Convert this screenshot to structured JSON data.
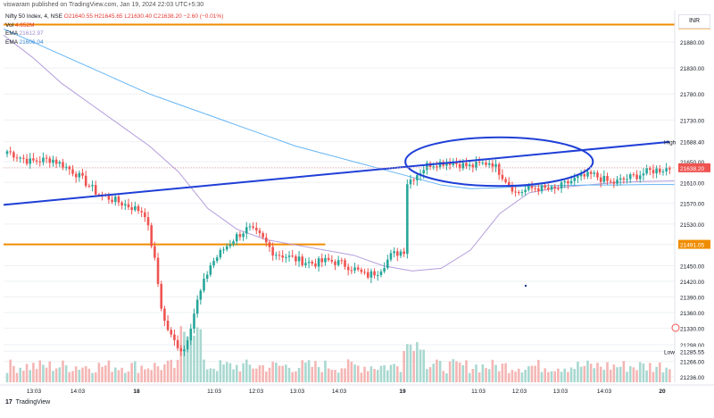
{
  "header": {
    "published": "viswaram published on TradingView.com, Jan 19, 2024 22:03 UTC+5:30"
  },
  "legend": {
    "symbol": "Nifty 50 Index, 4, NSE",
    "ohlc": "O21640.55 H21645.65 L21630.40 C21638.20 −2.60 (−0.01%)",
    "vol_label": "Vol",
    "vol_value": "4.652M",
    "ema1_label": "EMA",
    "ema1_value": "21612.97",
    "ema2_label": "EMA",
    "ema2_value": "21606.04"
  },
  "currency": "INR",
  "logo": {
    "mark": "17",
    "text": "TradingView"
  },
  "colors": {
    "up": "#26a69a",
    "down": "#ef5350",
    "vol_up": "#a8d8d0",
    "vol_down": "#f4b6b4",
    "trend": "#1f3fd6",
    "hline": "#f08c00",
    "ema_fast": "#b39ddb",
    "ema_slow": "#64b5f6",
    "price_tag": "#ef5350",
    "grid": "#eef0f4"
  },
  "chart_data": {
    "type": "candlestick",
    "y_range": [
      21226,
      21940
    ],
    "y_ticks": [
      "21913.40",
      "21880.00",
      "21830.00",
      "21780.00",
      "21730.00",
      "21688.40",
      "21650.00",
      "21638.20",
      "21610.00",
      "21570.00",
      "21530.00",
      "21491.05",
      "21450.00",
      "21420.00",
      "21390.00",
      "21360.00",
      "21330.00",
      "21298.00",
      "21285.55",
      "21266.00",
      "21236.00"
    ],
    "x_ticks": [
      "13:03",
      "14:03",
      "18",
      "11:03",
      "12:03",
      "13:03",
      "14:03",
      "19",
      "11:03",
      "12:03",
      "13:03",
      "14:03",
      "20"
    ],
    "price_labels": [
      {
        "label": "21913.40",
        "value": 21913.4,
        "kind": "hline"
      },
      {
        "label": "21688.40",
        "value": 21688.4,
        "kind": "high",
        "note": "High"
      },
      {
        "label": "21638.20",
        "value": 21638.2,
        "kind": "last"
      },
      {
        "label": "21491.05",
        "value": 21491.05,
        "kind": "hline"
      },
      {
        "label": "21285.55",
        "value": 21285.55,
        "kind": "low",
        "note": "Low"
      }
    ],
    "horizontal_lines": [
      21913.4,
      21491.05
    ],
    "trend_line": {
      "from": [
        0,
        21567
      ],
      "to": [
        203,
        21688
      ]
    },
    "annotation": {
      "type": "ellipse",
      "center_index": 150,
      "center_value": 21650,
      "x_span": 26,
      "y_span": 55
    },
    "series": [
      {
        "name": "EMA",
        "values": [
          21893,
          21850,
          21800,
          21760,
          21720,
          21680,
          21630,
          21560,
          21520,
          21500,
          21490,
          21480,
          21470,
          21450,
          21440,
          21445,
          21480,
          21550,
          21590,
          21600,
          21605,
          21610,
          21612,
          21613
        ]
      },
      {
        "name": "EMA",
        "values": [
          21905,
          21880,
          21855,
          21830,
          21805,
          21780,
          21760,
          21740,
          21720,
          21700,
          21680,
          21665,
          21650,
          21635,
          21620,
          21605,
          21598,
          21600,
          21603,
          21604,
          21605,
          21605,
          21606,
          21606
        ]
      }
    ],
    "segments": [
      {
        "n": 42,
        "anchors": [
          21670,
          21650,
          21655,
          21630,
          21590,
          21572,
          21555
        ]
      },
      {
        "n": 12,
        "anchors": [
          21550,
          21470,
          21350,
          21310,
          21290
        ]
      },
      {
        "n": 40,
        "anchors": [
          21290,
          21380,
          21450,
          21480,
          21505,
          21522,
          21505,
          21475,
          21468,
          21460,
          21455
        ]
      },
      {
        "n": 28,
        "anchors": [
          21455,
          21460,
          21455,
          21445,
          21430,
          21440,
          21470,
          21480
        ]
      },
      {
        "n": 33,
        "anchors": [
          21610,
          21645,
          21650,
          21640,
          21650,
          21600
        ]
      },
      {
        "n": 48,
        "anchors": [
          21590,
          21600,
          21595,
          21615,
          21625,
          21608,
          21620,
          21632,
          21638
        ]
      }
    ]
  }
}
